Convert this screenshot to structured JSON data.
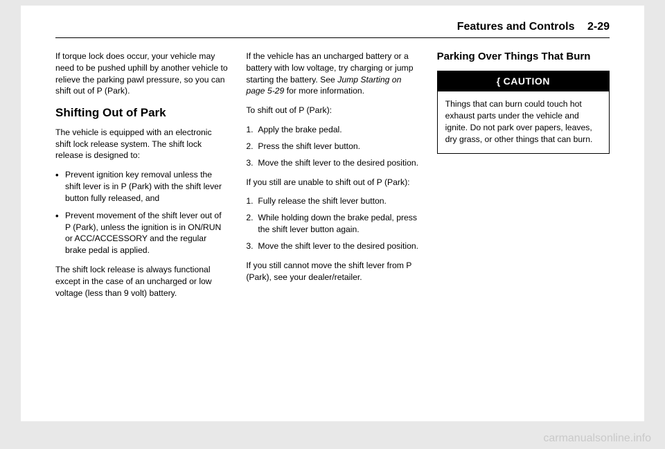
{
  "header": {
    "section": "Features and Controls",
    "page": "2-29"
  },
  "col1": {
    "p1": "If torque lock does occur, your vehicle may need to be pushed uphill by another vehicle to relieve the parking pawl pressure, so you can shift out of P (Park).",
    "h2": "Shifting Out of Park",
    "p2": "The vehicle is equipped with an electronic shift lock release system. The shift lock release is designed to:",
    "b1": "Prevent ignition key removal unless the shift lever is in P (Park) with the shift lever button fully released, and",
    "b2": "Prevent movement of the shift lever out of P (Park), unless the ignition is in ON/RUN or ACC/ACCESSORY and the regular brake pedal is applied.",
    "p3": "The shift lock release is always functional except in the case of an uncharged or low voltage (less than 9 volt) battery."
  },
  "col2": {
    "p1a": "If the vehicle has an uncharged battery or a battery with low voltage, try charging or jump starting the battery. See ",
    "p1i": "Jump Starting on page 5-29",
    "p1b": " for more information.",
    "p2": "To shift out of P (Park):",
    "n1": "Apply the brake pedal.",
    "n2": "Press the shift lever button.",
    "n3": "Move the shift lever to the desired position.",
    "p3": "If you still are unable to shift out of P (Park):",
    "m1": "Fully release the shift lever button.",
    "m2": "While holding down the brake pedal, press the shift lever button again.",
    "m3": "Move the shift lever to the desired position.",
    "p4": "If you still cannot move the shift lever from P (Park), see your dealer/retailer."
  },
  "col3": {
    "h3": "Parking Over Things That Burn",
    "caution_label": "CAUTION",
    "caution_body": "Things that can burn could touch hot exhaust parts under the vehicle and ignite. Do not park over papers, leaves, dry grass, or other things that can burn."
  },
  "watermark": "carmanualsonline.info"
}
